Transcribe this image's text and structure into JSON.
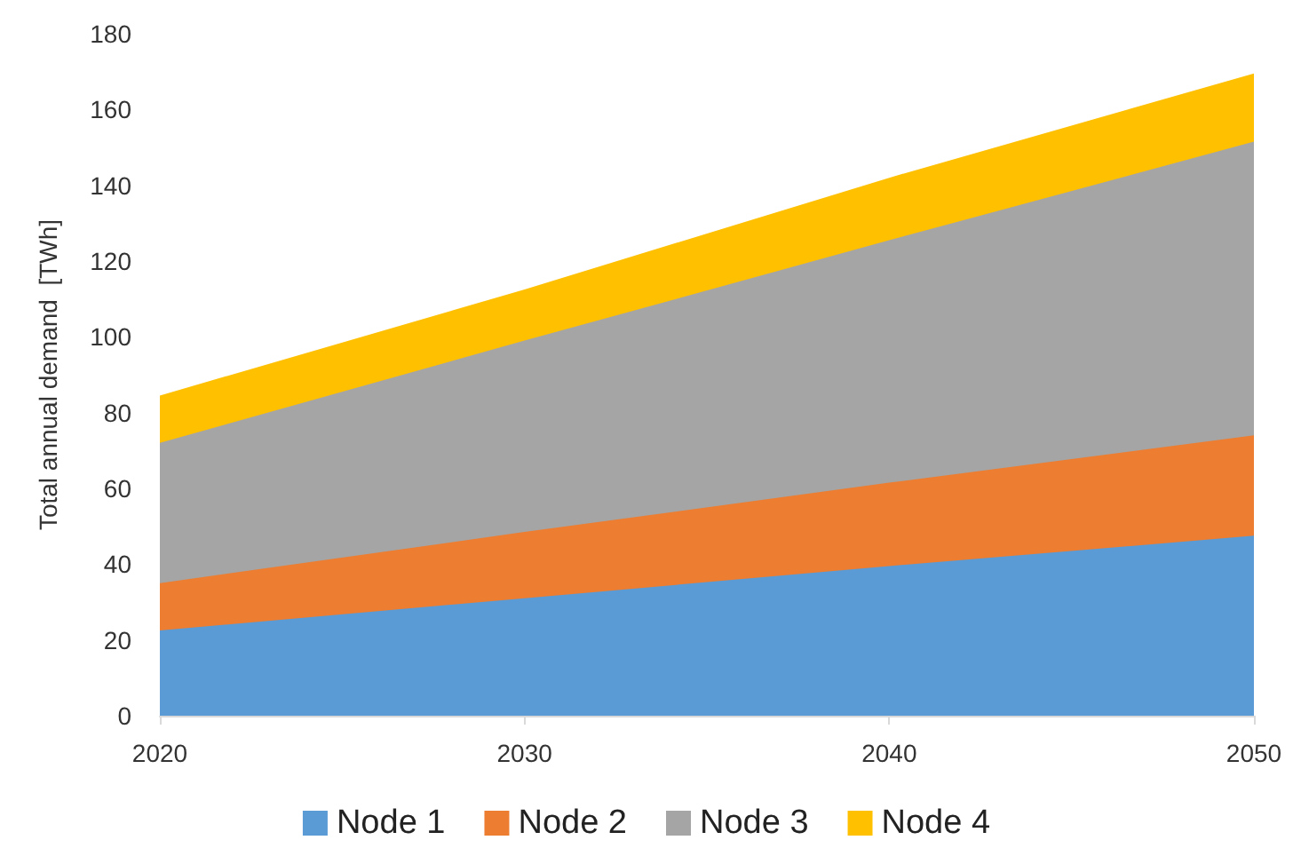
{
  "chart_data": {
    "type": "area",
    "stacked": true,
    "ylabel": "Total annual demand  [TWh]",
    "x": [
      2020,
      2030,
      2040,
      2050
    ],
    "series": [
      {
        "name": "Node 1",
        "color": "#5b9bd5",
        "values": [
          22.5,
          31,
          39.5,
          47.5
        ]
      },
      {
        "name": "Node 2",
        "color": "#ed7d31",
        "values": [
          12.5,
          17.5,
          22,
          26.5
        ]
      },
      {
        "name": "Node 3",
        "color": "#a5a5a5",
        "values": [
          37,
          50.5,
          64,
          77.5
        ]
      },
      {
        "name": "Node 4",
        "color": "#ffc000",
        "values": [
          12.5,
          13.5,
          16.5,
          18
        ]
      }
    ],
    "xlim": [
      2020,
      2050
    ],
    "xticks": [
      2020,
      2030,
      2040,
      2050
    ],
    "ylim": [
      0,
      180
    ],
    "yticks": [
      0,
      20,
      40,
      60,
      80,
      100,
      120,
      140,
      160,
      180
    ],
    "grid": false,
    "legend": "bottom"
  }
}
